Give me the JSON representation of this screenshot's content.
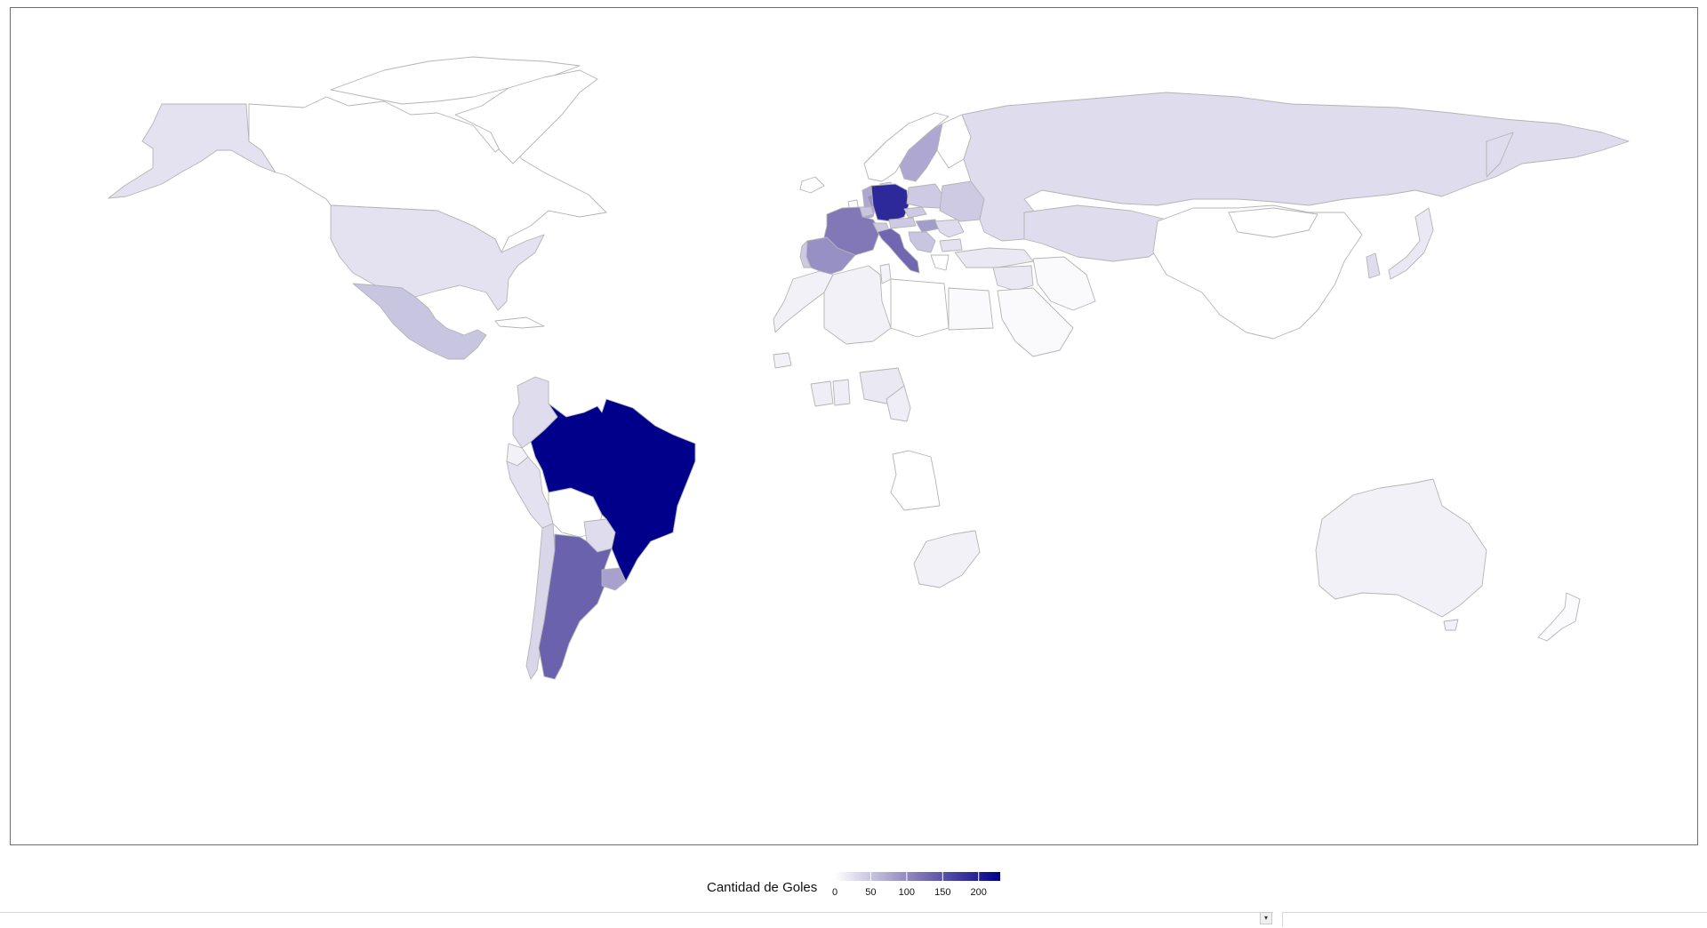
{
  "legend": {
    "title": "Cantidad de Goles",
    "ticks": [
      "0",
      "50",
      "100",
      "150",
      "200"
    ],
    "min": 0,
    "max": 230,
    "color_low": "#ffffff",
    "color_high": "#00008b"
  },
  "colors": {
    "border": "#b4b4b4",
    "no_data": "#ffffff"
  },
  "regions": [
    {
      "name": "brazil",
      "value": 230
    },
    {
      "name": "germany",
      "value": 190
    },
    {
      "name": "argentina",
      "value": 135
    },
    {
      "name": "italy",
      "value": 130
    },
    {
      "name": "france",
      "value": 115
    },
    {
      "name": "spain",
      "value": 95
    },
    {
      "name": "uruguay",
      "value": 80
    },
    {
      "name": "sweden",
      "value": 75
    },
    {
      "name": "netherlands",
      "value": 95
    },
    {
      "name": "hungary",
      "value": 85
    },
    {
      "name": "england",
      "value": 75
    },
    {
      "name": "mexico",
      "value": 50
    },
    {
      "name": "belgium",
      "value": 50
    },
    {
      "name": "poland",
      "value": 45
    },
    {
      "name": "austria",
      "value": 45
    },
    {
      "name": "switzerland",
      "value": 45
    },
    {
      "name": "czech",
      "value": 45
    },
    {
      "name": "portugal",
      "value": 45
    },
    {
      "name": "yugoslavia",
      "value": 50
    },
    {
      "name": "chile",
      "value": 35
    },
    {
      "name": "paraguay",
      "value": 30
    },
    {
      "name": "colombia",
      "value": 30
    },
    {
      "name": "denmark",
      "value": 30
    },
    {
      "name": "romania",
      "value": 30
    },
    {
      "name": "bulgaria",
      "value": 25
    },
    {
      "name": "russia",
      "value": 30
    },
    {
      "name": "korea",
      "value": 30
    },
    {
      "name": "usa",
      "value": 25
    },
    {
      "name": "peru",
      "value": 25
    },
    {
      "name": "ecuador",
      "value": 12
    },
    {
      "name": "turkey",
      "value": 20
    },
    {
      "name": "japan",
      "value": 20
    },
    {
      "name": "nigeria",
      "value": 20
    },
    {
      "name": "ghana",
      "value": 15
    },
    {
      "name": "ivory-coast",
      "value": 15
    },
    {
      "name": "cameroon",
      "value": 15
    },
    {
      "name": "algeria",
      "value": 12
    },
    {
      "name": "morocco",
      "value": 12
    },
    {
      "name": "south-africa",
      "value": 12
    },
    {
      "name": "australia",
      "value": 12
    },
    {
      "name": "new-zealand",
      "value": 4
    },
    {
      "name": "alaska",
      "value": 25
    },
    {
      "name": "canada",
      "value": 0
    },
    {
      "name": "china",
      "value": 0
    },
    {
      "name": "egypt",
      "value": 5
    },
    {
      "name": "saudi-arabia",
      "value": 5
    },
    {
      "name": "iran",
      "value": 5
    },
    {
      "name": "angola",
      "value": 0
    },
    {
      "name": "greenland",
      "value": 0
    },
    {
      "name": "bolivia",
      "value": 0
    },
    {
      "name": "tunisia",
      "value": 10
    }
  ],
  "scrollbar": {
    "arrow": "▾"
  }
}
